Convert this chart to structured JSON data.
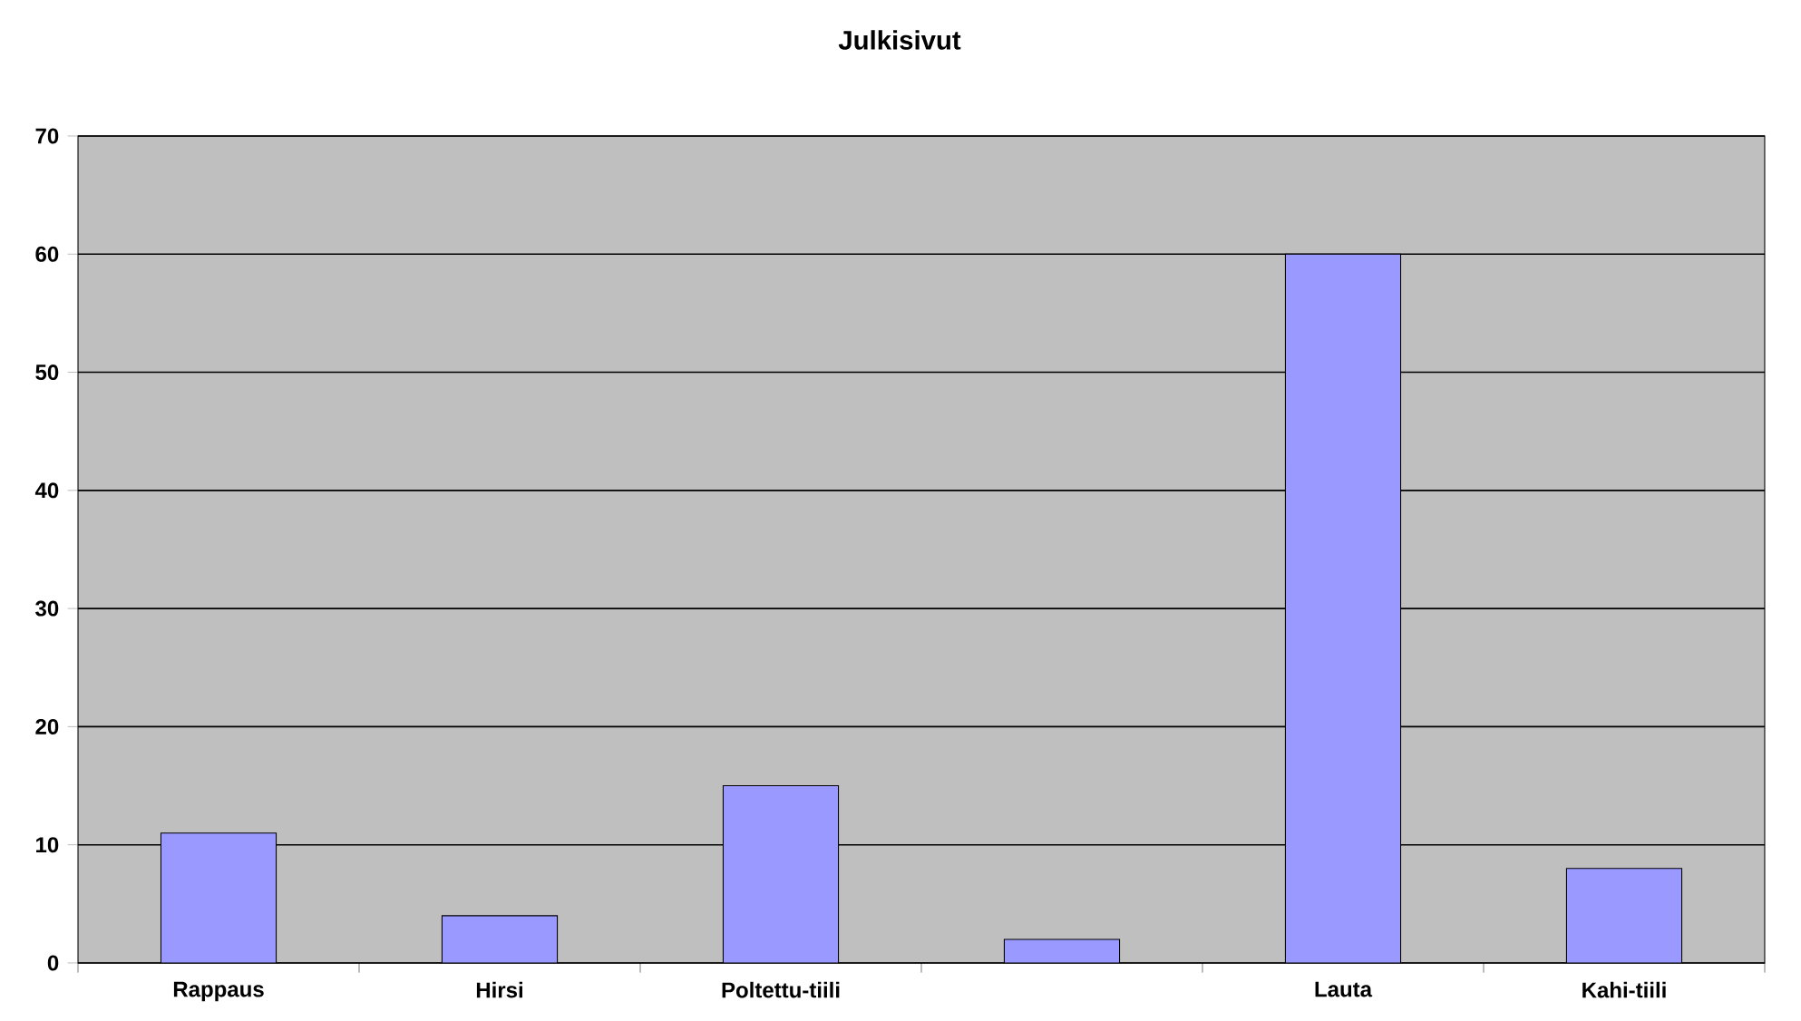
{
  "chart_data": {
    "type": "bar",
    "title": "Julkisivut",
    "categories": [
      "Rappaus",
      "Hirsi",
      "Poltettu-tiili",
      null,
      "Lauta",
      "Kahi-tiili"
    ],
    "values": [
      11,
      4,
      15,
      2,
      60,
      8
    ],
    "color": "#9999ff",
    "ylim": [
      0,
      70
    ],
    "yticks": [
      0,
      10,
      20,
      30,
      40,
      50,
      60,
      70
    ],
    "grid": "y"
  }
}
